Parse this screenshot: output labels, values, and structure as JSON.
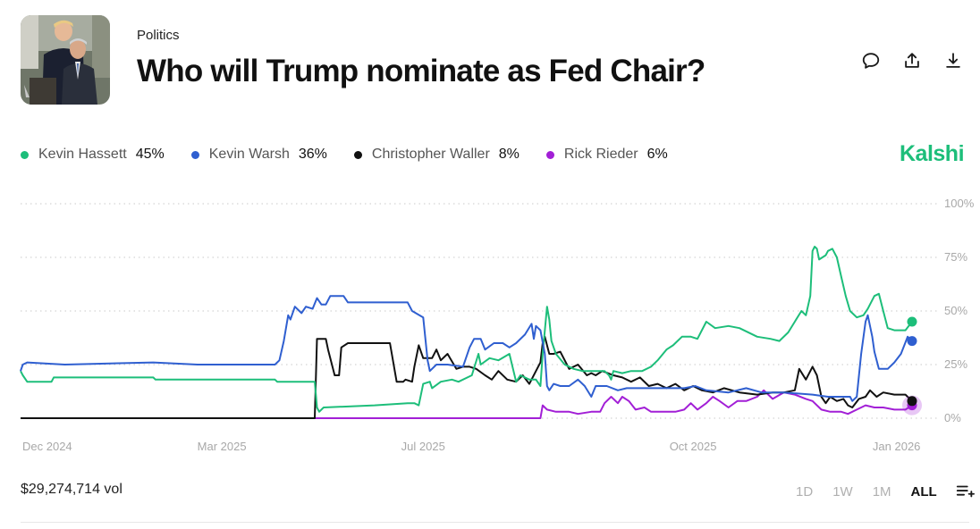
{
  "header": {
    "category": "Politics",
    "title": "Who will Trump nominate as Fed Chair?",
    "thumbnail": "market-photo"
  },
  "actions": {
    "comment_icon": "comment-icon",
    "share_icon": "share-icon",
    "download_icon": "download-icon"
  },
  "brand": "Kalshi",
  "legend": [
    {
      "name": "Kevin Hassett",
      "value": "45%",
      "color": "#1dbe7a"
    },
    {
      "name": "Kevin Warsh",
      "value": "36%",
      "color": "#2f5fd0"
    },
    {
      "name": "Christopher Waller",
      "value": "8%",
      "color": "#111111"
    },
    {
      "name": "Rick Rieder",
      "value": "6%",
      "color": "#a21fd6"
    }
  ],
  "footer": {
    "volume": "$29,274,714 vol",
    "ranges": [
      "1D",
      "1W",
      "1M",
      "ALL"
    ],
    "active_range": "ALL",
    "settings_icon": "list-settings-icon"
  },
  "chart_data": {
    "type": "line",
    "x_ticks": [
      "Dec 2024",
      "Mar 2025",
      "Jul 2025",
      "Oct 2025",
      "Jan 2026"
    ],
    "x_tick_positions": [
      0,
      91,
      182,
      304,
      396
    ],
    "x_range": [
      0,
      403
    ],
    "y_ticks": [
      "0%",
      "25%",
      "50%",
      "75%",
      "100%"
    ],
    "y_tick_values": [
      0,
      25,
      50,
      75,
      100
    ],
    "ylim": [
      0,
      100
    ],
    "grid": true,
    "series": [
      {
        "name": "Kevin Hassett",
        "color": "#1dbe7a",
        "end_label": "45%",
        "points": [
          [
            0,
            22
          ],
          [
            1,
            20
          ],
          [
            3,
            17
          ],
          [
            6,
            17
          ],
          [
            14,
            17
          ],
          [
            15,
            19
          ],
          [
            50,
            19
          ],
          [
            60,
            19
          ],
          [
            61,
            18
          ],
          [
            90,
            18
          ],
          [
            115,
            18
          ],
          [
            116,
            17
          ],
          [
            133,
            17
          ],
          [
            134,
            5
          ],
          [
            135,
            3
          ],
          [
            137,
            5
          ],
          [
            160,
            6
          ],
          [
            175,
            7
          ],
          [
            178,
            7
          ],
          [
            180,
            6
          ],
          [
            182,
            16
          ],
          [
            185,
            17
          ],
          [
            186,
            14
          ],
          [
            190,
            17
          ],
          [
            195,
            18
          ],
          [
            198,
            17
          ],
          [
            204,
            20
          ],
          [
            207,
            30
          ],
          [
            208,
            25
          ],
          [
            212,
            28
          ],
          [
            216,
            27
          ],
          [
            221,
            30
          ],
          [
            224,
            17
          ],
          [
            226,
            20
          ],
          [
            230,
            18
          ],
          [
            233,
            18
          ],
          [
            235,
            15
          ],
          [
            236,
            30
          ],
          [
            238,
            52
          ],
          [
            239,
            46
          ],
          [
            240,
            36
          ],
          [
            242,
            30
          ],
          [
            246,
            25
          ],
          [
            250,
            23
          ],
          [
            254,
            22
          ],
          [
            260,
            22
          ],
          [
            264,
            22
          ],
          [
            266,
            20
          ],
          [
            267,
            18
          ],
          [
            268,
            22
          ],
          [
            272,
            21
          ],
          [
            276,
            22
          ],
          [
            281,
            22
          ],
          [
            285,
            24
          ],
          [
            288,
            27
          ],
          [
            292,
            32
          ],
          [
            295,
            34
          ],
          [
            299,
            38
          ],
          [
            303,
            38
          ],
          [
            306,
            37
          ],
          [
            310,
            45
          ],
          [
            314,
            42
          ],
          [
            320,
            43
          ],
          [
            325,
            42
          ],
          [
            333,
            38
          ],
          [
            339,
            37
          ],
          [
            343,
            36
          ],
          [
            347,
            40
          ],
          [
            350,
            45
          ],
          [
            353,
            50
          ],
          [
            355,
            48
          ],
          [
            357,
            57
          ],
          [
            358,
            78
          ],
          [
            359,
            80
          ],
          [
            360,
            79
          ],
          [
            361,
            74
          ],
          [
            364,
            76
          ],
          [
            365,
            78
          ],
          [
            367,
            79
          ],
          [
            369,
            75
          ],
          [
            371,
            66
          ],
          [
            373,
            57
          ],
          [
            375,
            50
          ],
          [
            378,
            47
          ],
          [
            381,
            48
          ],
          [
            383,
            51
          ],
          [
            386,
            57
          ],
          [
            388,
            58
          ],
          [
            390,
            50
          ],
          [
            392,
            42
          ],
          [
            395,
            41
          ],
          [
            400,
            41
          ],
          [
            403,
            45
          ]
        ]
      },
      {
        "name": "Kevin Warsh",
        "color": "#2f5fd0",
        "end_label": "36%",
        "points": [
          [
            0,
            22
          ],
          [
            1,
            25
          ],
          [
            3,
            26
          ],
          [
            20,
            25
          ],
          [
            60,
            26
          ],
          [
            80,
            25
          ],
          [
            100,
            25
          ],
          [
            115,
            25
          ],
          [
            117,
            27
          ],
          [
            119,
            36
          ],
          [
            121,
            48
          ],
          [
            122,
            46
          ],
          [
            124,
            52
          ],
          [
            127,
            49
          ],
          [
            129,
            52
          ],
          [
            132,
            51
          ],
          [
            134,
            56
          ],
          [
            136,
            53
          ],
          [
            138,
            53
          ],
          [
            140,
            57
          ],
          [
            146,
            57
          ],
          [
            148,
            54
          ],
          [
            158,
            54
          ],
          [
            175,
            54
          ],
          [
            177,
            50
          ],
          [
            182,
            47
          ],
          [
            184,
            27
          ],
          [
            185,
            22
          ],
          [
            188,
            25
          ],
          [
            193,
            25
          ],
          [
            200,
            24
          ],
          [
            203,
            33
          ],
          [
            205,
            37
          ],
          [
            208,
            37
          ],
          [
            210,
            32
          ],
          [
            214,
            35
          ],
          [
            218,
            35
          ],
          [
            221,
            33
          ],
          [
            224,
            35
          ],
          [
            228,
            39
          ],
          [
            231,
            44
          ],
          [
            232,
            37
          ],
          [
            233,
            43
          ],
          [
            235,
            41
          ],
          [
            237,
            30
          ],
          [
            238,
            15
          ],
          [
            239,
            13
          ],
          [
            241,
            16
          ],
          [
            244,
            15
          ],
          [
            248,
            15
          ],
          [
            252,
            18
          ],
          [
            255,
            15
          ],
          [
            258,
            10
          ],
          [
            260,
            15
          ],
          [
            265,
            15
          ],
          [
            270,
            13
          ],
          [
            274,
            14
          ],
          [
            280,
            14
          ],
          [
            290,
            14
          ],
          [
            300,
            14
          ],
          [
            305,
            15
          ],
          [
            310,
            13
          ],
          [
            320,
            12
          ],
          [
            328,
            14
          ],
          [
            335,
            12
          ],
          [
            345,
            12
          ],
          [
            358,
            11
          ],
          [
            365,
            10
          ],
          [
            370,
            10
          ],
          [
            375,
            10
          ],
          [
            376,
            8
          ],
          [
            378,
            10
          ],
          [
            380,
            30
          ],
          [
            382,
            45
          ],
          [
            383,
            48
          ],
          [
            384,
            43
          ],
          [
            385,
            38
          ],
          [
            386,
            31
          ],
          [
            388,
            23
          ],
          [
            392,
            23
          ],
          [
            395,
            26
          ],
          [
            398,
            30
          ],
          [
            401,
            38
          ],
          [
            403,
            36
          ]
        ]
      },
      {
        "name": "Christopher Waller",
        "color": "#111111",
        "end_label": "8%",
        "points": [
          [
            0,
            0
          ],
          [
            30,
            0
          ],
          [
            60,
            0
          ],
          [
            90,
            0
          ],
          [
            110,
            0
          ],
          [
            133,
            0
          ],
          [
            134,
            37
          ],
          [
            138,
            37
          ],
          [
            139,
            32
          ],
          [
            142,
            20
          ],
          [
            144,
            20
          ],
          [
            145,
            33
          ],
          [
            148,
            35
          ],
          [
            165,
            35
          ],
          [
            167,
            35
          ],
          [
            169,
            23
          ],
          [
            170,
            17
          ],
          [
            173,
            17
          ],
          [
            174,
            18
          ],
          [
            177,
            17
          ],
          [
            178,
            24
          ],
          [
            180,
            34
          ],
          [
            182,
            28
          ],
          [
            186,
            28
          ],
          [
            188,
            32
          ],
          [
            190,
            27
          ],
          [
            193,
            30
          ],
          [
            197,
            23
          ],
          [
            200,
            24
          ],
          [
            203,
            24
          ],
          [
            206,
            23
          ],
          [
            210,
            20
          ],
          [
            213,
            18
          ],
          [
            216,
            22
          ],
          [
            220,
            18
          ],
          [
            224,
            17
          ],
          [
            227,
            20
          ],
          [
            230,
            16
          ],
          [
            233,
            22
          ],
          [
            235,
            26
          ],
          [
            236,
            35
          ],
          [
            237,
            38
          ],
          [
            239,
            30
          ],
          [
            241,
            30
          ],
          [
            244,
            31
          ],
          [
            248,
            23
          ],
          [
            252,
            25
          ],
          [
            256,
            20
          ],
          [
            258,
            21
          ],
          [
            260,
            20
          ],
          [
            263,
            22
          ],
          [
            268,
            20
          ],
          [
            272,
            19
          ],
          [
            276,
            17
          ],
          [
            280,
            19
          ],
          [
            284,
            15
          ],
          [
            288,
            16
          ],
          [
            292,
            14
          ],
          [
            296,
            16
          ],
          [
            300,
            13
          ],
          [
            304,
            15
          ],
          [
            308,
            13
          ],
          [
            313,
            12
          ],
          [
            318,
            14
          ],
          [
            325,
            12
          ],
          [
            333,
            11
          ],
          [
            340,
            12
          ],
          [
            345,
            12
          ],
          [
            350,
            13
          ],
          [
            352,
            23
          ],
          [
            355,
            18
          ],
          [
            358,
            24
          ],
          [
            360,
            20
          ],
          [
            362,
            10
          ],
          [
            364,
            7
          ],
          [
            366,
            10
          ],
          [
            369,
            8
          ],
          [
            372,
            9
          ],
          [
            374,
            6
          ],
          [
            376,
            5
          ],
          [
            379,
            9
          ],
          [
            382,
            10
          ],
          [
            384,
            13
          ],
          [
            387,
            10
          ],
          [
            390,
            12
          ],
          [
            395,
            11
          ],
          [
            400,
            11
          ],
          [
            403,
            8
          ]
        ]
      },
      {
        "name": "Rick Rieder",
        "color": "#a21fd6",
        "end_label": "6%",
        "points": [
          [
            0,
            0
          ],
          [
            30,
            0
          ],
          [
            60,
            0
          ],
          [
            90,
            0
          ],
          [
            120,
            0
          ],
          [
            150,
            0
          ],
          [
            180,
            0
          ],
          [
            210,
            0
          ],
          [
            235,
            0
          ],
          [
            236,
            6
          ],
          [
            238,
            4
          ],
          [
            242,
            3
          ],
          [
            248,
            3
          ],
          [
            252,
            2
          ],
          [
            258,
            3
          ],
          [
            262,
            3
          ],
          [
            264,
            7
          ],
          [
            267,
            10
          ],
          [
            270,
            7
          ],
          [
            272,
            10
          ],
          [
            275,
            8
          ],
          [
            278,
            4
          ],
          [
            282,
            5
          ],
          [
            285,
            3
          ],
          [
            292,
            3
          ],
          [
            296,
            3
          ],
          [
            300,
            4
          ],
          [
            303,
            7
          ],
          [
            306,
            4
          ],
          [
            310,
            7
          ],
          [
            313,
            10
          ],
          [
            316,
            8
          ],
          [
            320,
            5
          ],
          [
            324,
            8
          ],
          [
            328,
            8
          ],
          [
            333,
            10
          ],
          [
            336,
            13
          ],
          [
            340,
            9
          ],
          [
            345,
            12
          ],
          [
            350,
            11
          ],
          [
            355,
            9
          ],
          [
            358,
            8
          ],
          [
            362,
            4
          ],
          [
            366,
            3
          ],
          [
            371,
            3
          ],
          [
            374,
            2
          ],
          [
            378,
            4
          ],
          [
            382,
            6
          ],
          [
            386,
            5
          ],
          [
            390,
            5
          ],
          [
            395,
            4
          ],
          [
            400,
            4
          ],
          [
            403,
            6
          ]
        ]
      }
    ]
  }
}
